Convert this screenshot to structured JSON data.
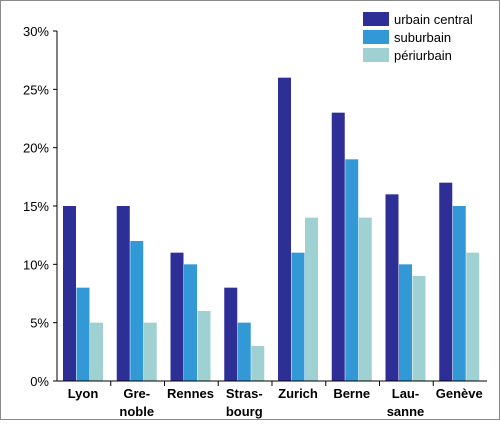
{
  "chart_data": {
    "type": "bar",
    "categories": [
      [
        "Lyon"
      ],
      [
        "Gre-",
        "noble"
      ],
      [
        "Rennes"
      ],
      [
        "Stras-",
        "bourg"
      ],
      [
        "Zurich"
      ],
      [
        "Berne"
      ],
      [
        "Lau-",
        "sanne"
      ],
      [
        "Genève"
      ]
    ],
    "series": [
      {
        "name": "urbain central",
        "color": "#2e2f96",
        "values": [
          15,
          15,
          11,
          8,
          26,
          23,
          16,
          17
        ]
      },
      {
        "name": "suburbain",
        "color": "#3399d6",
        "values": [
          8,
          12,
          10,
          5,
          11,
          19,
          10,
          15
        ]
      },
      {
        "name": "périurbain",
        "color": "#9fd0d2",
        "values": [
          5,
          5,
          6,
          3,
          14,
          14,
          9,
          11
        ]
      }
    ],
    "y_unit": "%",
    "ylim": [
      0,
      30
    ],
    "yticks": [
      0,
      5,
      10,
      15,
      20,
      25,
      30
    ],
    "ytick_labels": [
      "0%",
      "5%",
      "10%",
      "15%",
      "20%",
      "25%",
      "30%"
    ],
    "title": "",
    "xlabel": "",
    "ylabel": "",
    "grid": false,
    "legend_position": "top-right"
  }
}
